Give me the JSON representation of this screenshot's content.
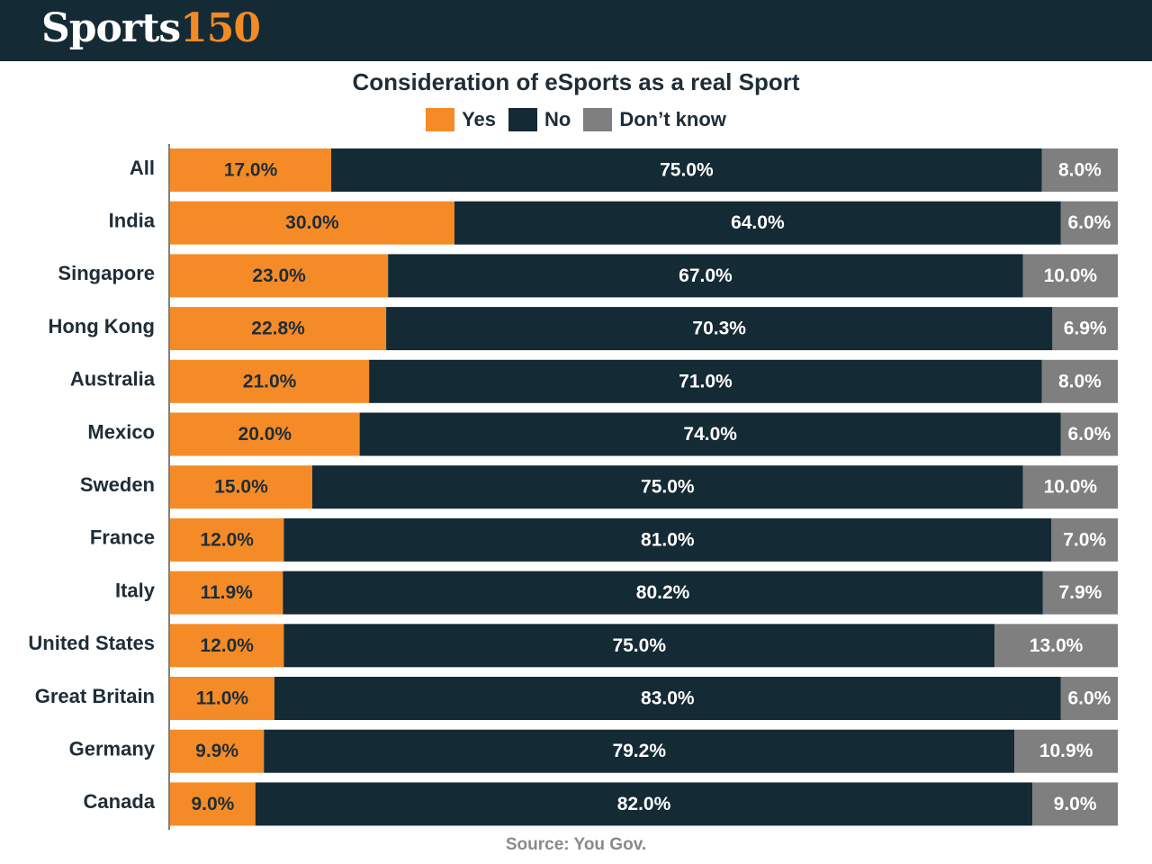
{
  "brand": {
    "word": "Sports",
    "number": "150"
  },
  "chart_data": {
    "type": "bar",
    "orientation": "horizontal",
    "stacked": true,
    "title": "Consideration of eSports as a real Sport",
    "categories": [
      "All",
      "India",
      "Singapore",
      "Hong Kong",
      "Australia",
      "Mexico",
      "Sweden",
      "France",
      "Italy",
      "United States",
      "Great Britain",
      "Germany",
      "Canada"
    ],
    "series": [
      {
        "name": "Yes",
        "color": "#f58b26",
        "labelColor": "#1e2d38",
        "values": [
          17.0,
          30.0,
          23.0,
          22.8,
          21.0,
          20.0,
          15.0,
          12.0,
          11.9,
          12.0,
          11.0,
          9.9,
          9.0
        ]
      },
      {
        "name": "No",
        "color": "#142a35",
        "labelColor": "#ffffff",
        "values": [
          75.0,
          64.0,
          67.0,
          70.3,
          71.0,
          74.0,
          75.0,
          81.0,
          80.2,
          75.0,
          83.0,
          79.2,
          82.0
        ]
      },
      {
        "name": "Don’t know",
        "color": "#7f7f7f",
        "labelColor": "#ffffff",
        "values": [
          8.0,
          6.0,
          10.0,
          6.9,
          8.0,
          6.0,
          10.0,
          7.0,
          7.9,
          13.0,
          6.0,
          10.9,
          9.0
        ]
      }
    ],
    "legend_position": "top-center",
    "value_format": "0.0%",
    "source": "Source: You Gov."
  }
}
